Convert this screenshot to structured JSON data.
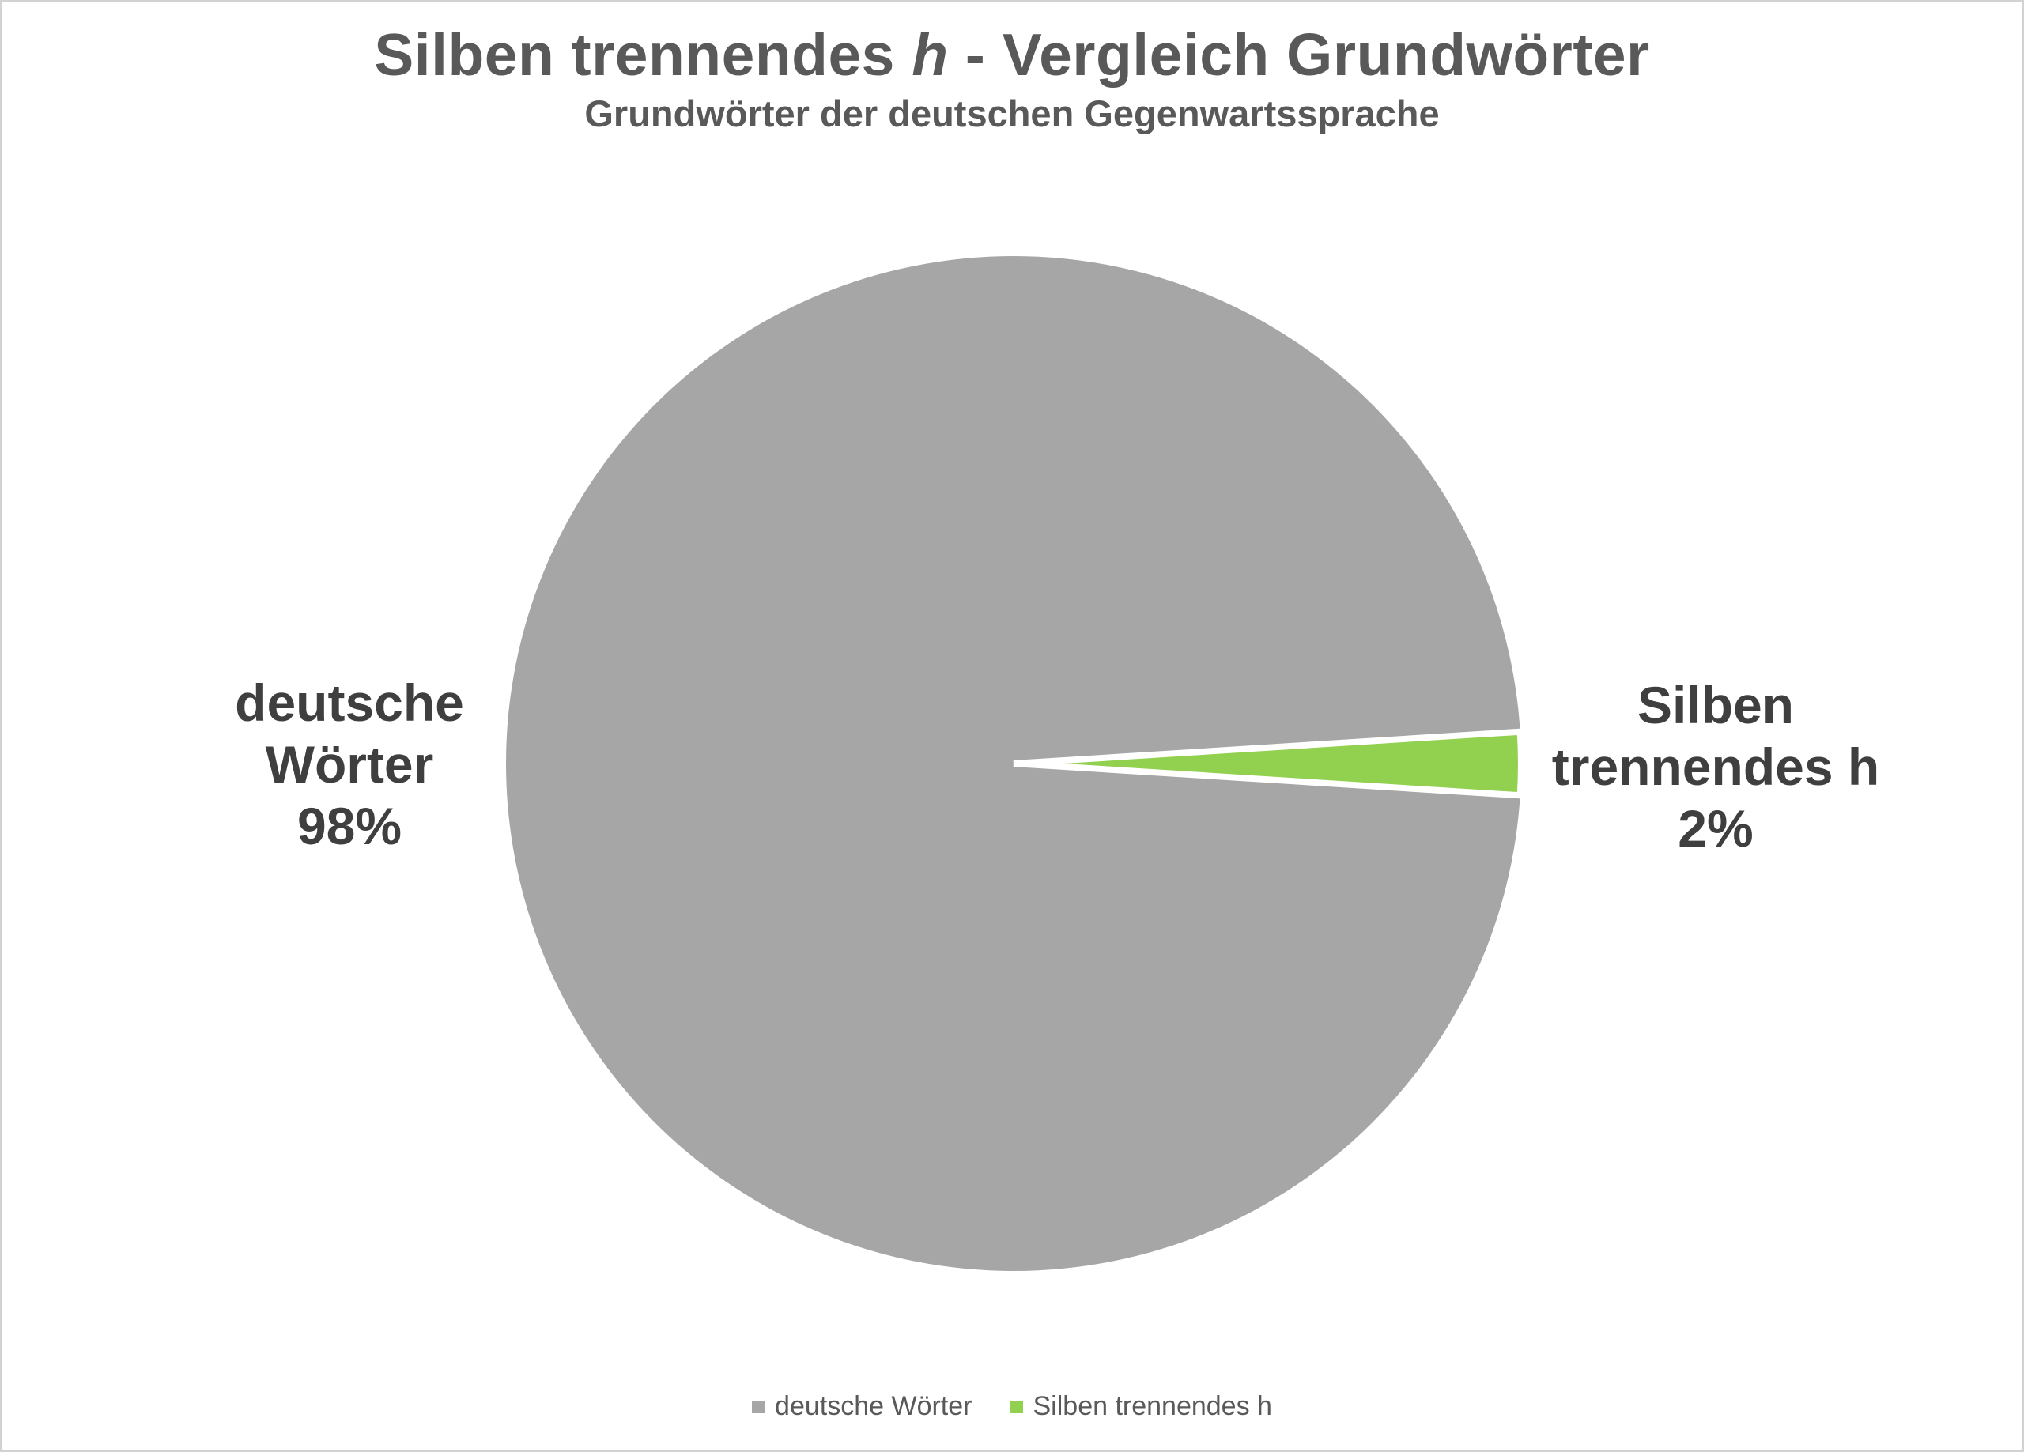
{
  "title": {
    "prefix": "Silben trennendes ",
    "italic_word": "h",
    "suffix": " - Vergleich Grundwörter"
  },
  "subtitle": "Grundwörter der deutschen Gegenwartssprache",
  "chart_data": {
    "type": "pie",
    "title": "Silben trennendes h - Vergleich Grundwörter",
    "subtitle": "Grundwörter der deutschen Gegenwartssprache",
    "categories": [
      "deutsche Wörter",
      "Silben trennendes h"
    ],
    "values": [
      98,
      2
    ],
    "unit": "%",
    "colors": [
      "#a6a6a6",
      "#92d050"
    ],
    "slice_border_color": "#ffffff",
    "legend_position": "bottom",
    "small_slice_direction_deg": 0,
    "data_labels_outside": true
  },
  "data_labels": {
    "left": {
      "lines": [
        "deutsche",
        "Wörter",
        "98%"
      ]
    },
    "right": {
      "lines": [
        "Silben",
        "trennendes h",
        "2%"
      ]
    }
  },
  "legend": {
    "items": [
      {
        "label": "deutsche Wörter",
        "color": "#a6a6a6"
      },
      {
        "label": "Silben trennendes h",
        "color": "#92d050"
      }
    ]
  },
  "colors": {
    "background": "#ffffff",
    "frame_border": "#d2d2d2",
    "title_text": "#595959",
    "data_label_text": "#3f3f3f",
    "legend_text": "#595959"
  }
}
